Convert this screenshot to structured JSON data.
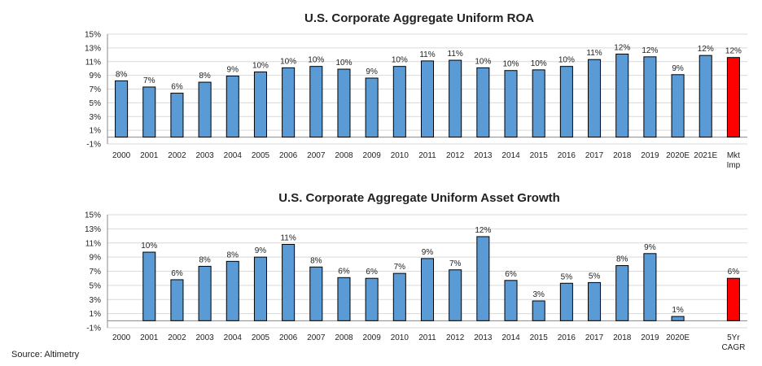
{
  "source": "Source: Altimetry",
  "colors": {
    "bar": "#5b9bd5",
    "highlight": "#ff0000",
    "grid": "#d9d9d9",
    "axis": "#888888"
  },
  "chart_data": [
    {
      "type": "bar",
      "title": "U.S. Corporate Aggregate Uniform ROA",
      "xlabel": "",
      "ylabel": "",
      "ylim": [
        -1,
        15
      ],
      "y_ticks": [
        "-1%",
        "1%",
        "3%",
        "5%",
        "7%",
        "9%",
        "11%",
        "13%",
        "15%"
      ],
      "grid": true,
      "categories": [
        [
          "2000"
        ],
        [
          "2001"
        ],
        [
          "2002"
        ],
        [
          "2003"
        ],
        [
          "2004"
        ],
        [
          "2005"
        ],
        [
          "2006"
        ],
        [
          "2007"
        ],
        [
          "2008"
        ],
        [
          "2009"
        ],
        [
          "2010"
        ],
        [
          "2011"
        ],
        [
          "2012"
        ],
        [
          "2013"
        ],
        [
          "2014"
        ],
        [
          "2015"
        ],
        [
          "2016"
        ],
        [
          "2017"
        ],
        [
          "2018"
        ],
        [
          "2019"
        ],
        [
          "2020E"
        ],
        [
          "2021E"
        ],
        [
          "Mkt",
          "Imp"
        ]
      ],
      "values": [
        8.2,
        7.3,
        6.4,
        8.0,
        8.9,
        9.5,
        10.1,
        10.3,
        9.9,
        8.6,
        10.3,
        11.1,
        11.2,
        10.1,
        9.7,
        9.8,
        10.3,
        11.3,
        12.1,
        11.7,
        9.1,
        11.9,
        11.6
      ],
      "data_labels": [
        "8%",
        "7%",
        "6%",
        "8%",
        "9%",
        "10%",
        "10%",
        "10%",
        "10%",
        "9%",
        "10%",
        "11%",
        "11%",
        "10%",
        "10%",
        "10%",
        "10%",
        "11%",
        "12%",
        "12%",
        "9%",
        "12%",
        "12%"
      ],
      "highlight_index": 22
    },
    {
      "type": "bar",
      "title": "U.S. Corporate Aggregate Uniform Asset Growth",
      "xlabel": "",
      "ylabel": "",
      "ylim": [
        -1,
        15
      ],
      "y_ticks": [
        "-1%",
        "1%",
        "3%",
        "5%",
        "7%",
        "9%",
        "11%",
        "13%",
        "15%"
      ],
      "grid": true,
      "categories": [
        [
          "2000"
        ],
        [
          "2001"
        ],
        [
          "2002"
        ],
        [
          "2003"
        ],
        [
          "2004"
        ],
        [
          "2005"
        ],
        [
          "2006"
        ],
        [
          "2007"
        ],
        [
          "2008"
        ],
        [
          "2009"
        ],
        [
          "2010"
        ],
        [
          "2011"
        ],
        [
          "2012"
        ],
        [
          "2013"
        ],
        [
          "2014"
        ],
        [
          "2015"
        ],
        [
          "2016"
        ],
        [
          "2017"
        ],
        [
          "2018"
        ],
        [
          "2019"
        ],
        [
          "2020E"
        ],
        [
          ""
        ],
        [
          "5Yr",
          "CAGR"
        ]
      ],
      "values": [
        null,
        9.7,
        5.8,
        7.7,
        8.4,
        9.0,
        10.8,
        7.6,
        6.1,
        6.0,
        6.7,
        8.8,
        7.2,
        11.9,
        5.7,
        2.8,
        5.3,
        5.4,
        7.8,
        9.5,
        0.6,
        null,
        6.0
      ],
      "data_labels": [
        "",
        "10%",
        "6%",
        "8%",
        "8%",
        "9%",
        "11%",
        "8%",
        "6%",
        "6%",
        "7%",
        "9%",
        "7%",
        "12%",
        "6%",
        "3%",
        "5%",
        "5%",
        "8%",
        "9%",
        "1%",
        "",
        "6%"
      ],
      "highlight_index": 22
    }
  ]
}
